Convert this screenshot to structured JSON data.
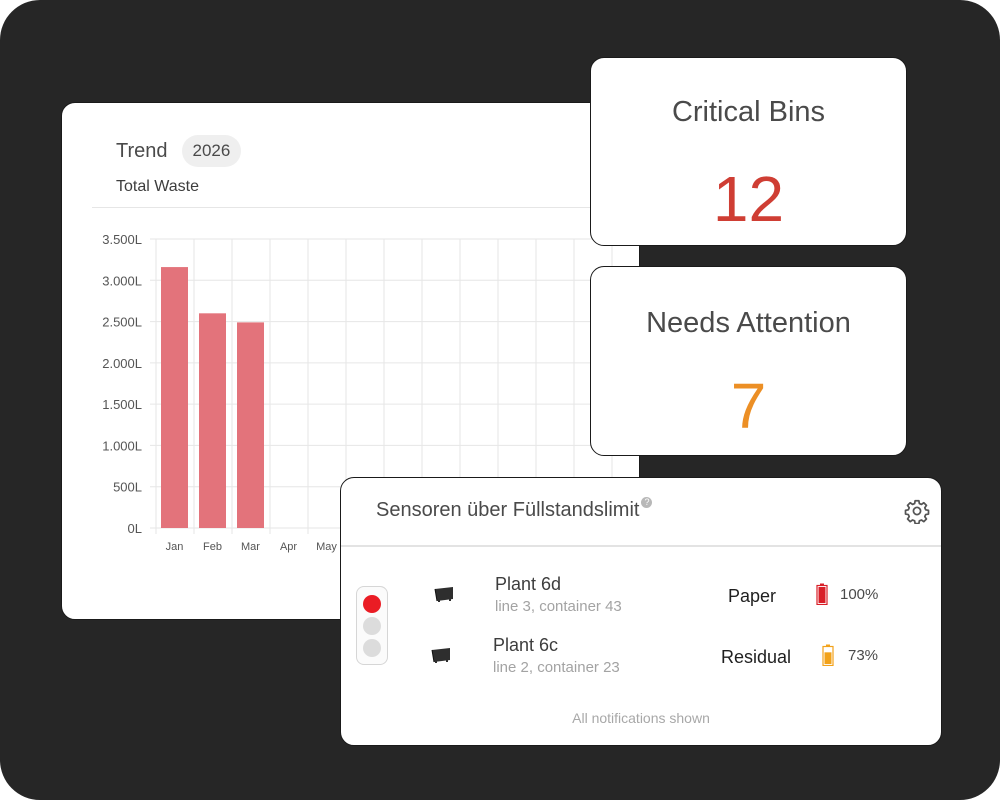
{
  "trend_card": {
    "title": "Trend",
    "year": "2026",
    "subtitle": "Total Waste"
  },
  "chart_data": {
    "type": "bar",
    "categories": [
      "Jan",
      "Feb",
      "Mar",
      "Apr",
      "May"
    ],
    "values": [
      3160,
      2600,
      2490,
      null,
      null
    ],
    "ylim": [
      0,
      3500
    ],
    "yticks": [
      "0L",
      "500L",
      "1.000L",
      "1.500L",
      "2.000L",
      "2.500L",
      "3.000L",
      "3.500L"
    ],
    "grid": true,
    "bar_color": "#e3737b"
  },
  "kpis": {
    "critical": {
      "label": "Critical Bins",
      "value": "12",
      "color": "#cf3e34"
    },
    "attention": {
      "label": "Needs Attention",
      "value": "7",
      "color": "#ec8f25"
    }
  },
  "sensors": {
    "title": "Sensoren über Füllstandslimit",
    "help_glyph": "?",
    "settings_icon": "gear-icon",
    "rows": [
      {
        "name": "Plant 6d",
        "location": "line 3, container 43",
        "type": "Paper",
        "fill": "100%",
        "fill_fraction": 1.0,
        "fill_color": "#d81e27"
      },
      {
        "name": "Plant 6c",
        "location": "line 2, container 23",
        "type": "Residual",
        "fill": "73%",
        "fill_fraction": 0.73,
        "fill_color": "#f2a21a"
      }
    ],
    "footer": "All notifications shown"
  }
}
